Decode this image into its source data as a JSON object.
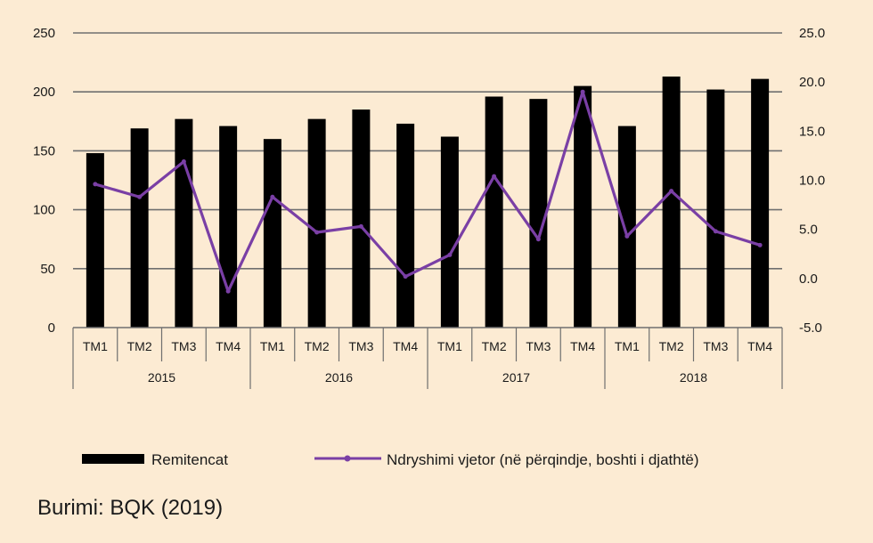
{
  "chart_data": {
    "type": "bar+line",
    "categories": [
      "TM1",
      "TM2",
      "TM3",
      "TM4",
      "TM1",
      "TM2",
      "TM3",
      "TM4",
      "TM1",
      "TM2",
      "TM3",
      "TM4",
      "TM1",
      "TM2",
      "TM3",
      "TM4"
    ],
    "years": [
      "2015",
      "2016",
      "2017",
      "2018"
    ],
    "series": [
      {
        "name": "Remitencat",
        "type": "bar",
        "axis": "left",
        "color": "#000000",
        "values": [
          148,
          169,
          177,
          171,
          160,
          177,
          185,
          173,
          162,
          196,
          194,
          205,
          171,
          213,
          202,
          211
        ]
      },
      {
        "name": "Ndryshimi vjetor (në përqindje, boshti i djathtë)",
        "type": "line",
        "axis": "right",
        "color": "#7a3fa5",
        "values": [
          9.6,
          8.3,
          11.9,
          -1.3,
          8.3,
          4.7,
          5.3,
          0.2,
          2.4,
          10.4,
          4.0,
          19.0,
          4.3,
          8.9,
          4.8,
          3.4
        ]
      }
    ],
    "y_left": {
      "ylim": [
        0,
        250
      ],
      "ticks": [
        "0",
        "50",
        "100",
        "150",
        "200",
        "250"
      ]
    },
    "y_right": {
      "ylim": [
        -5,
        25
      ],
      "ticks": [
        "-5.0",
        "0.0",
        "5.0",
        "10.0",
        "15.0",
        "20.0",
        "25.0"
      ]
    },
    "grid": true,
    "legend": "bottom"
  },
  "source": "Burimi: BQK (2019)"
}
